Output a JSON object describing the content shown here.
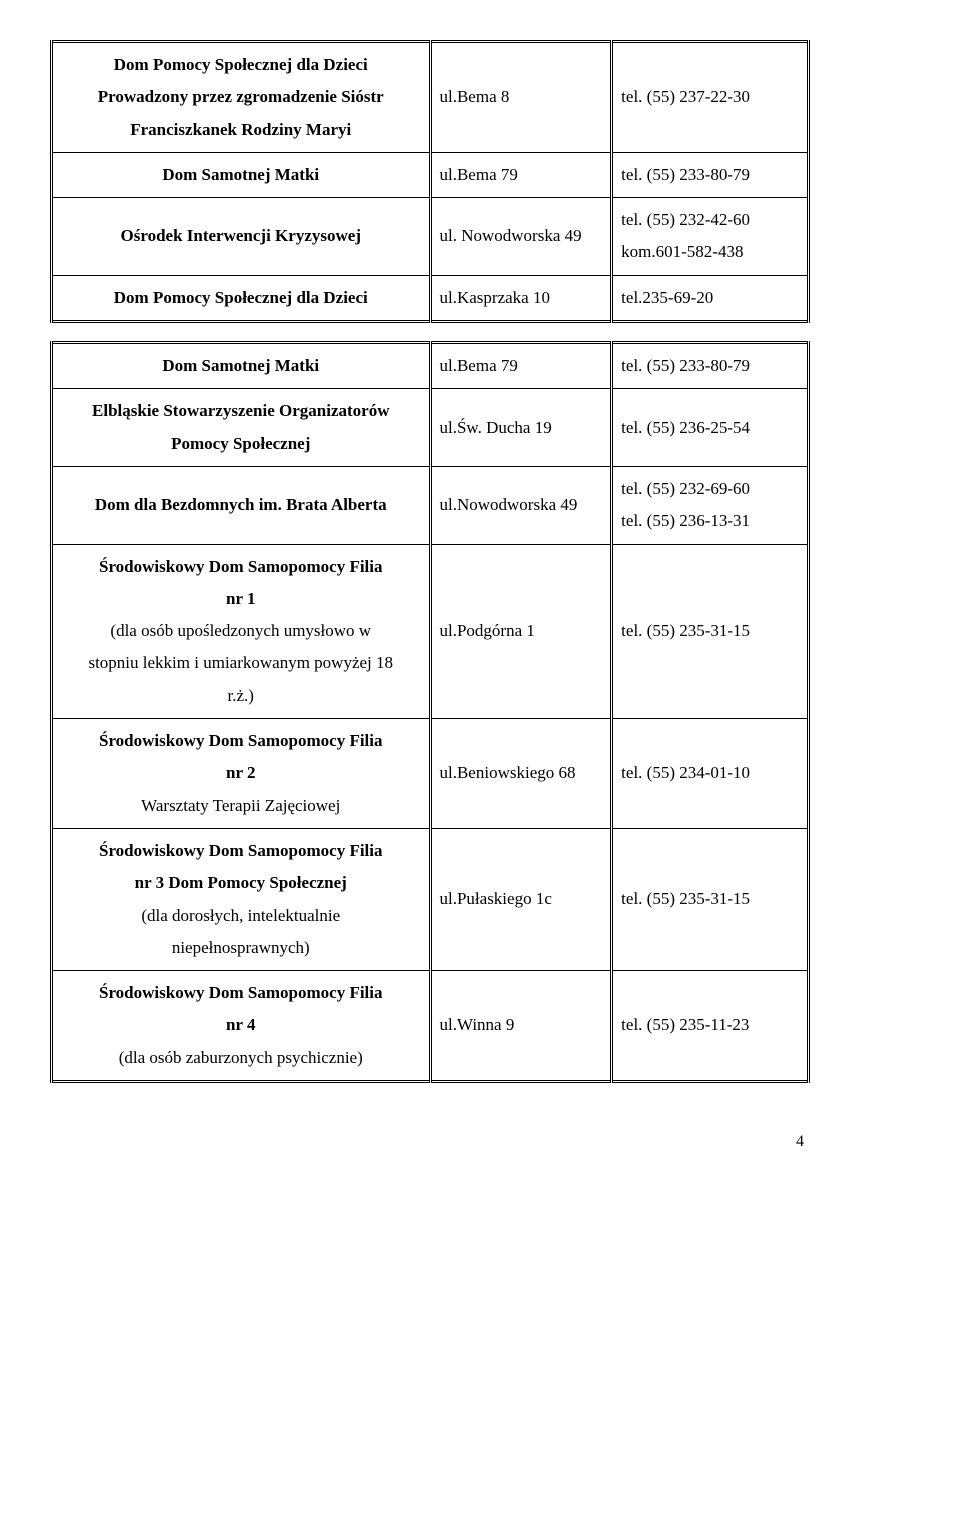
{
  "table1": {
    "rows": [
      {
        "name": "Dom Pomocy Społecznej dla Dzieci\nProwadzony przez zgromadzenie Sióstr\nFranciszkanek Rodziny Maryi",
        "addr": "ul.Bema 8",
        "contact": "tel. (55) 237-22-30"
      },
      {
        "name": "Dom Samotnej Matki",
        "addr": "ul.Bema 79",
        "contact": "tel. (55) 233-80-79"
      },
      {
        "name": "Ośrodek Interwencji Kryzysowej",
        "addr": "ul. Nowodworska 49",
        "contact": "tel. (55) 232-42-60\nkom.601-582-438"
      },
      {
        "name": "Dom Pomocy Społecznej dla Dzieci",
        "addr": "ul.Kasprzaka 10",
        "contact": "tel.235-69-20"
      }
    ]
  },
  "table2": {
    "rows": [
      {
        "name": "Dom Samotnej Matki",
        "addr": "ul.Bema 79",
        "contact": "tel. (55) 233-80-79"
      },
      {
        "name": "Elbląskie Stowarzyszenie Organizatorów\nPomocy Społecznej",
        "addr": "ul.Św. Ducha 19",
        "contact": "tel. (55)  236-25-54"
      },
      {
        "name": "Dom dla Bezdomnych im. Brata Alberta",
        "addr": "ul.Nowodworska 49",
        "contact": "tel. (55) 232-69-60\ntel. (55) 236-13-31"
      },
      {
        "name_line1": "Środowiskowy Dom Samopomocy Filia\nnr 1",
        "name_line2": "(dla osób upośledzonych umysłowo w\nstopniu lekkim i umiarkowanym powyżej 18\nr.ż.)",
        "addr": "ul.Podgórna 1",
        "contact": "tel. (55) 235-31-15"
      },
      {
        "name_line1": "Środowiskowy Dom Samopomocy Filia\nnr 2",
        "name_line2": "Warsztaty Terapii Zajęciowej",
        "addr": "ul.Beniowskiego 68",
        "contact": "tel. (55) 234-01-10"
      },
      {
        "name_line1": "Środowiskowy Dom Samopomocy Filia\nnr 3 Dom Pomocy Społecznej",
        "name_line2": "(dla dorosłych, intelektualnie\nniepełnosprawnych)",
        "addr": "ul.Pułaskiego 1c",
        "contact": "tel. (55) 235-31-15"
      },
      {
        "name_line1": "Środowiskowy Dom Samopomocy Filia\nnr 4",
        "name_line2": "(dla osób zaburzonych psychicznie)",
        "addr": "ul.Winna 9",
        "contact": "tel. (55) 235-11-23"
      }
    ]
  },
  "page_number": "4",
  "style": {
    "font_family": "Times New Roman",
    "font_size_pt": 12,
    "text_color": "#000000",
    "background_color": "#ffffff",
    "table_border": "double"
  }
}
